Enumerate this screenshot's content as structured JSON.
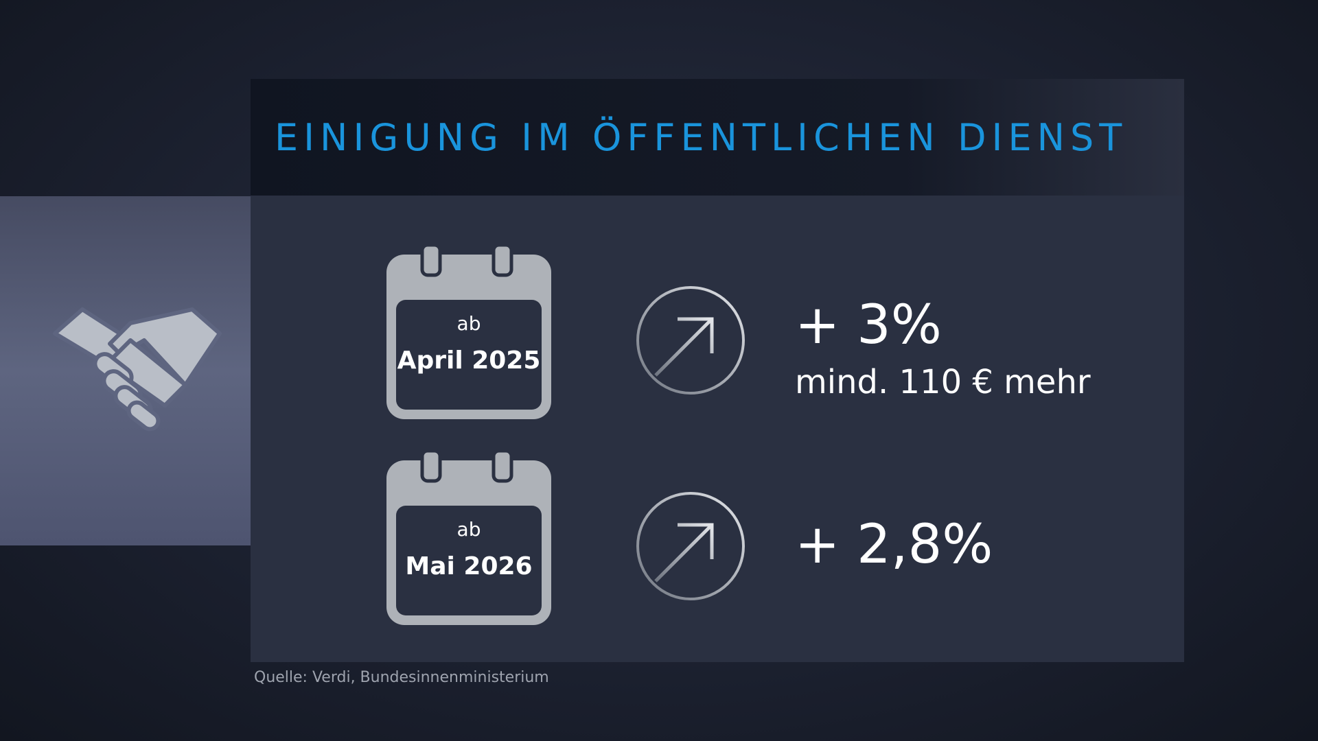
{
  "graphic": {
    "title": "EINIGUNG IM ÖFFENTLICHEN DIENST",
    "icon": "handshake-icon",
    "title_color": "#1a94dc",
    "steps": [
      {
        "prefix": "ab",
        "date": "April 2025",
        "change": "+ 3%",
        "detail": "mind. 110 € mehr",
        "icon": "trend-up-arrow-icon"
      },
      {
        "prefix": "ab",
        "date": "Mai 2026",
        "change": "+ 2,8%",
        "icon": "trend-up-arrow-icon"
      }
    ],
    "source": "Quelle: Verdi, Bundesinnenministerium"
  }
}
